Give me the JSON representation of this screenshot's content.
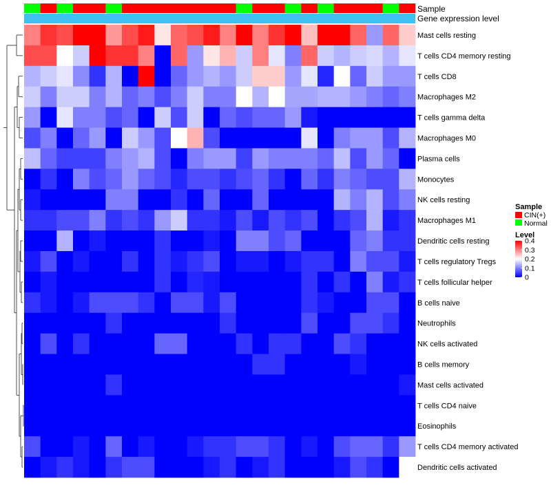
{
  "chart_data": {
    "type": "heatmap",
    "title": "",
    "annotation_labels": {
      "sample": "Sample",
      "expression": "Gene expression level"
    },
    "sample_order": [
      "Normal",
      "CIN(+)",
      "Normal",
      "CIN(+)",
      "CIN(+)",
      "Normal",
      "CIN(+)",
      "CIN(+)",
      "CIN(+)",
      "CIN(+)",
      "CIN(+)",
      "CIN(+)",
      "CIN(+)",
      "Normal",
      "CIN(+)",
      "CIN(+)",
      "Normal",
      "CIN(+)",
      "Normal",
      "CIN(+)",
      "CIN(+)",
      "CIN(+)",
      "Normal",
      "CIN(+)"
    ],
    "sample_colors": {
      "CIN(+)": "#FF0000",
      "Normal": "#00FF00"
    },
    "expression_bar_color": "#3DC1F0",
    "rows": [
      "Mast cells resting",
      "T cells CD4 memory resting",
      "T cells CD8",
      "Macrophages M2",
      "T cells gamma delta",
      "Macrophages M0",
      "Plasma cells",
      "Monocytes",
      "NK cells resting",
      "Macrophages M1",
      "Dendritic cells resting",
      "T cells regulatory  Tregs",
      "T cells follicular helper",
      "B cells naive",
      "Neutrophils",
      "NK cells activated",
      "B cells memory",
      "Mast cells activated",
      "T cells CD4 naive",
      "Eosinophils",
      "T cells CD4 memory activated",
      "Dendritic cells activated"
    ],
    "values": [
      [
        0.3,
        0.36,
        0.34,
        0.4,
        0.4,
        0.28,
        0.34,
        0.38,
        0.22,
        0.32,
        0.34,
        0.38,
        0.3,
        0.4,
        0.3,
        0.36,
        0.4,
        0.25,
        0.4,
        0.4,
        0.32,
        0.12,
        0.32,
        0.24
      ],
      [
        0.34,
        0.34,
        0.2,
        0.16,
        0.4,
        0.36,
        0.36,
        0.3,
        0.0,
        0.32,
        0.12,
        0.22,
        0.26,
        0.16,
        0.3,
        0.18,
        0.1,
        0.32,
        0.16,
        0.14,
        0.16,
        0.17,
        0.14,
        0.18
      ],
      [
        0.14,
        0.16,
        0.18,
        0.11,
        0.04,
        0.14,
        0.0,
        0.4,
        0.0,
        0.08,
        0.12,
        0.14,
        0.12,
        0.16,
        0.24,
        0.24,
        0.12,
        0.18,
        0.03,
        0.2,
        0.08,
        0.16,
        0.12,
        0.12
      ],
      [
        0.16,
        0.1,
        0.16,
        0.16,
        0.1,
        0.14,
        0.08,
        0.1,
        0.06,
        0.1,
        0.16,
        0.1,
        0.1,
        0.2,
        0.14,
        0.2,
        0.13,
        0.13,
        0.14,
        0.14,
        0.12,
        0.1,
        0.08,
        0.1
      ],
      [
        0.12,
        0.0,
        0.18,
        0.1,
        0.1,
        0.06,
        0.08,
        0.0,
        0.16,
        0.06,
        0.16,
        0.0,
        0.08,
        0.06,
        0.08,
        0.08,
        0.12,
        0.02,
        0.0,
        0.0,
        0.0,
        0.0,
        0.0,
        0.0
      ],
      [
        0.06,
        0.1,
        0.0,
        0.08,
        0.12,
        0.0,
        0.16,
        0.12,
        0.06,
        0.2,
        0.26,
        0.06,
        0.0,
        0.0,
        0.0,
        0.0,
        0.0,
        0.18,
        0.0,
        0.1,
        0.12,
        0.12,
        0.06,
        0.14
      ],
      [
        0.15,
        0.08,
        0.05,
        0.05,
        0.05,
        0.1,
        0.12,
        0.14,
        0.06,
        0.0,
        0.1,
        0.12,
        0.12,
        0.05,
        0.12,
        0.1,
        0.1,
        0.1,
        0.08,
        0.15,
        0.06,
        0.12,
        0.08,
        0.0
      ],
      [
        0.0,
        0.04,
        0.0,
        0.1,
        0.06,
        0.08,
        0.12,
        0.08,
        0.06,
        0.03,
        0.06,
        0.06,
        0.04,
        0.06,
        0.08,
        0.04,
        0.0,
        0.08,
        0.04,
        0.1,
        0.08,
        0.06,
        0.06,
        0.14
      ],
      [
        0.02,
        0.0,
        0.0,
        0.0,
        0.0,
        0.1,
        0.1,
        0.0,
        0.0,
        0.04,
        0.0,
        0.08,
        0.0,
        0.0,
        0.08,
        0.0,
        0.0,
        0.0,
        0.0,
        0.14,
        0.1,
        0.14,
        0.06,
        0.1
      ],
      [
        0.04,
        0.04,
        0.06,
        0.06,
        0.1,
        0.04,
        0.06,
        0.04,
        0.12,
        0.16,
        0.04,
        0.04,
        0.02,
        0.06,
        0.02,
        0.06,
        0.04,
        0.06,
        0.0,
        0.04,
        0.06,
        0.14,
        0.02,
        0.04
      ],
      [
        0.0,
        0.0,
        0.14,
        0.0,
        0.02,
        0.0,
        0.0,
        0.0,
        0.04,
        0.0,
        0.0,
        0.02,
        0.0,
        0.1,
        0.1,
        0.06,
        0.08,
        0.0,
        0.0,
        0.0,
        0.08,
        0.1,
        0.04,
        0.04
      ],
      [
        0.02,
        0.06,
        0.0,
        0.02,
        0.0,
        0.0,
        0.04,
        0.0,
        0.04,
        0.02,
        0.04,
        0.06,
        0.0,
        0.02,
        0.02,
        0.0,
        0.02,
        0.04,
        0.04,
        0.0,
        0.1,
        0.06,
        0.06,
        0.02
      ],
      [
        0.0,
        0.02,
        0.0,
        0.0,
        0.0,
        0.0,
        0.0,
        0.0,
        0.04,
        0.0,
        0.03,
        0.02,
        0.0,
        0.0,
        0.0,
        0.0,
        0.0,
        0.04,
        0.0,
        0.04,
        0.0,
        0.1,
        0.02,
        0.04
      ],
      [
        0.04,
        0.02,
        0.0,
        0.02,
        0.06,
        0.06,
        0.06,
        0.04,
        0.0,
        0.06,
        0.06,
        0.02,
        0.06,
        0.0,
        0.0,
        0.0,
        0.0,
        0.04,
        0.02,
        0.0,
        0.0,
        0.06,
        0.06,
        0.0
      ],
      [
        0.0,
        0.0,
        0.0,
        0.0,
        0.0,
        0.04,
        0.0,
        0.0,
        0.0,
        0.0,
        0.0,
        0.0,
        0.04,
        0.0,
        0.0,
        0.0,
        0.0,
        0.06,
        0.0,
        0.0,
        0.06,
        0.06,
        0.04,
        0.0
      ],
      [
        0.0,
        0.06,
        0.0,
        0.04,
        0.0,
        0.0,
        0.0,
        0.0,
        0.08,
        0.08,
        0.0,
        0.0,
        0.0,
        0.04,
        0.0,
        0.04,
        0.04,
        0.0,
        0.0,
        0.06,
        0.04,
        0.0,
        0.0,
        0.0
      ],
      [
        0.0,
        0.0,
        0.0,
        0.0,
        0.0,
        0.0,
        0.0,
        0.0,
        0.0,
        0.0,
        0.0,
        0.0,
        0.0,
        0.0,
        0.04,
        0.04,
        0.0,
        0.0,
        0.0,
        0.0,
        0.02,
        0.0,
        0.0,
        0.0
      ],
      [
        0.0,
        0.0,
        0.0,
        0.0,
        0.0,
        0.04,
        0.0,
        0.0,
        0.0,
        0.0,
        0.0,
        0.0,
        0.0,
        0.0,
        0.0,
        0.0,
        0.0,
        0.0,
        0.0,
        0.0,
        0.0,
        0.0,
        0.0,
        0.02
      ],
      [
        0.0,
        0.0,
        0.0,
        0.0,
        0.0,
        0.0,
        0.0,
        0.0,
        0.0,
        0.0,
        0.0,
        0.0,
        0.0,
        0.0,
        0.0,
        0.0,
        0.0,
        0.0,
        0.0,
        0.0,
        0.0,
        0.0,
        0.0,
        0.0
      ],
      [
        0.0,
        0.0,
        0.0,
        0.0,
        0.0,
        0.0,
        0.0,
        0.0,
        0.0,
        0.0,
        0.0,
        0.0,
        0.0,
        0.0,
        0.0,
        0.0,
        0.0,
        0.0,
        0.0,
        0.0,
        0.0,
        0.0,
        0.0,
        0.0
      ],
      [
        0.06,
        0.0,
        0.0,
        0.02,
        0.0,
        0.08,
        0.0,
        0.02,
        0.0,
        0.0,
        0.02,
        0.04,
        0.04,
        0.06,
        0.06,
        0.04,
        0.0,
        0.02,
        0.0,
        0.06,
        0.08,
        0.08,
        0.04,
        0.12
      ],
      [
        0.0,
        0.02,
        0.04,
        0.02,
        0.0,
        0.04,
        0.06,
        0.06,
        0.0,
        0.0,
        0.0,
        0.02,
        0.04,
        0.0,
        0.02,
        0.04,
        0.0,
        0.0,
        0.0,
        0.02,
        0.06,
        0.04,
        0.0,
        0.2
      ]
    ],
    "color_scale": {
      "min": 0,
      "max": 0.4,
      "colors": [
        "#0000FF",
        "#FFFFFF",
        "#FF0000"
      ],
      "midpoint": 0.2
    },
    "legend": {
      "sample": {
        "title": "Sample",
        "entries": [
          "CIN(+)",
          "Normal"
        ]
      },
      "level": {
        "title": "Level",
        "ticks": [
          "0.4",
          "0.3",
          "0.2",
          "0.1",
          "0"
        ],
        "tick_values": [
          0.4,
          0.3,
          0.2,
          0.1,
          0
        ]
      }
    },
    "row_dendrogram": true
  }
}
